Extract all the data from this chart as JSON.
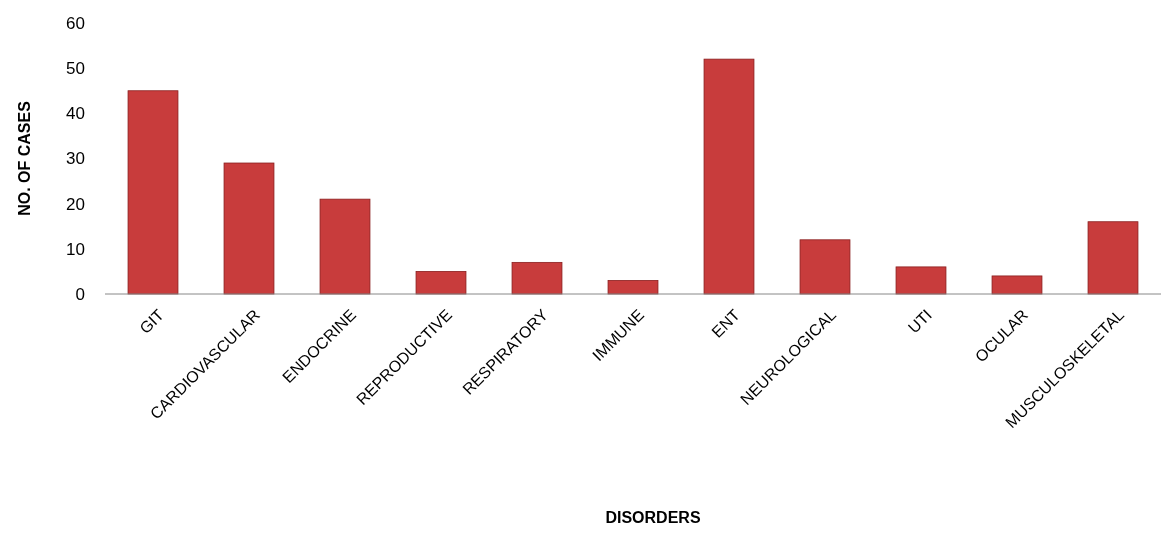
{
  "chart_data": {
    "type": "bar",
    "xlabel": "DISORDERS",
    "ylabel": "NO. OF CASES",
    "categories": [
      "GIT",
      "CARDIOVASCULAR",
      "ENDOCRINE",
      "REPRODUCTIVE",
      "RESPIRATORY",
      "IMMUNE",
      "ENT",
      "NEUROLOGICAL",
      "UTI",
      "OCULAR",
      "MUSCULOSKELETAL"
    ],
    "values": [
      45,
      29,
      21,
      5,
      7,
      3,
      52,
      12,
      6,
      4,
      16
    ],
    "color": "#c83c3c",
    "ylim": [
      0,
      60
    ],
    "yticks": [
      0,
      10,
      20,
      30,
      40,
      50,
      60
    ]
  }
}
